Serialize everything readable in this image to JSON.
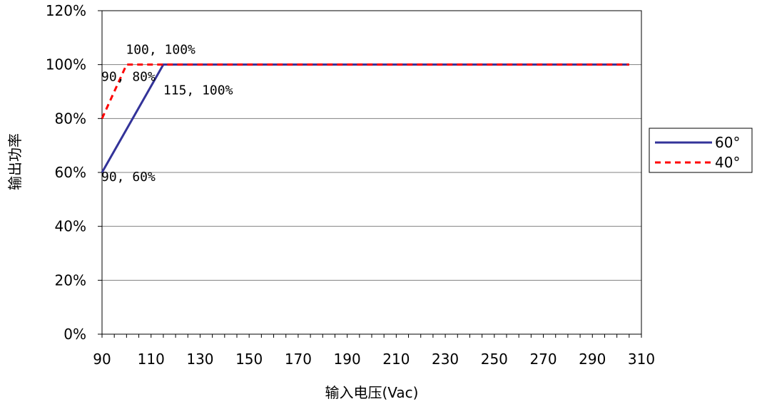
{
  "chart_data": {
    "type": "line",
    "xlabel": "输入电压(Vac)",
    "ylabel": "输出功率",
    "xlim": [
      90,
      310
    ],
    "ylim": [
      0,
      1.2
    ],
    "x_ticks": [
      90,
      110,
      130,
      150,
      170,
      190,
      210,
      230,
      250,
      270,
      290,
      310
    ],
    "y_ticks": [
      {
        "value": 0,
        "label": "0%"
      },
      {
        "value": 0.2,
        "label": "20%"
      },
      {
        "value": 0.4,
        "label": "40%"
      },
      {
        "value": 0.6,
        "label": "60%"
      },
      {
        "value": 0.8,
        "label": "80%"
      },
      {
        "value": 1.0,
        "label": "100%"
      },
      {
        "value": 1.2,
        "label": "120%"
      }
    ],
    "grid": "horizontal",
    "legend_position": "right",
    "series": [
      {
        "name": "60°",
        "color": "#333399",
        "style": "solid",
        "points": [
          [
            90,
            0.6
          ],
          [
            115,
            1.0
          ],
          [
            305,
            1.0
          ]
        ]
      },
      {
        "name": "40°",
        "color": "#ff0000",
        "style": "dashed",
        "points": [
          [
            90,
            0.8
          ],
          [
            100,
            1.0
          ],
          [
            305,
            1.0
          ]
        ]
      }
    ],
    "annotations": [
      {
        "text": "100, 100%",
        "x": 100,
        "y": 1.0
      },
      {
        "text": "115, 100%",
        "x": 115,
        "y": 1.0
      },
      {
        "text": "90, 80%",
        "x": 90,
        "y": 0.8
      },
      {
        "text": "90, 60%",
        "x": 90,
        "y": 0.6
      }
    ]
  }
}
